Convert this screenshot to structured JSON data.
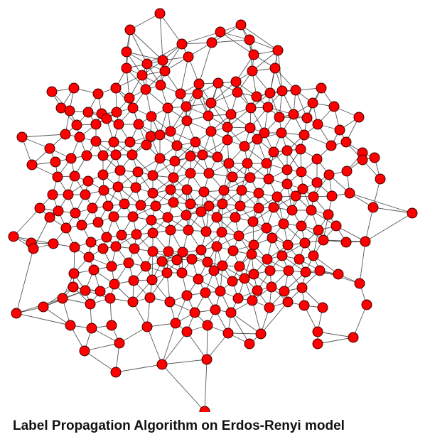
{
  "caption": "Label Propagation Algorithm on Erdos-Renyi model",
  "graph": {
    "model": "Erdos-Renyi random graph",
    "node_fill": "#ff0000",
    "node_stroke": "#3a0000",
    "edge_color": "#3b3b3b",
    "background": "#ffffff"
  }
}
